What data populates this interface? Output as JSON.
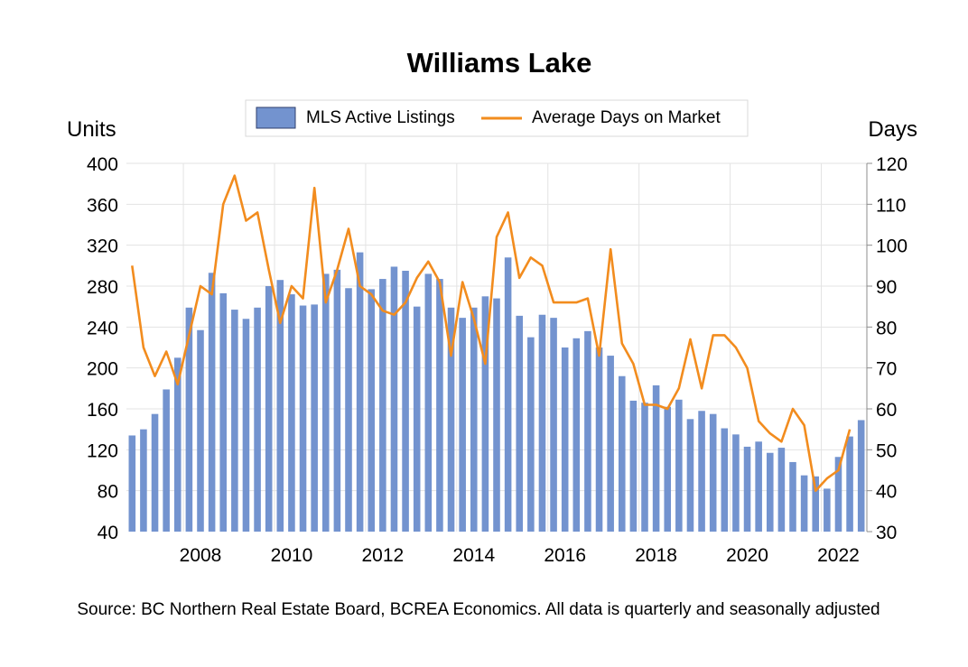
{
  "chart_data": {
    "type": "bar+line",
    "title": "Williams Lake",
    "source": "Source: BC Northern Real Estate Board, BCREA Economics. All data is quarterly and seasonally adjusted",
    "y_left_label": "Units",
    "y_right_label": "Days",
    "y_left_lim": [
      40,
      400
    ],
    "y_left_ticks": [
      "400",
      "360",
      "320",
      "280",
      "240",
      "200",
      "160",
      "120",
      "80",
      "40"
    ],
    "y_right_lim": [
      30,
      120
    ],
    "y_right_ticks": [
      "120",
      "110",
      "100",
      "90",
      "80",
      "70",
      "60",
      "50",
      "40",
      "30"
    ],
    "x_start": "2006 Q4",
    "x_tick_labels": [
      "2008",
      "2010",
      "2012",
      "2014",
      "2016",
      "2018",
      "2020",
      "2022"
    ],
    "x_tick_quarters": [
      "2008 Q1",
      "2010 Q1",
      "2012 Q1",
      "2014 Q1",
      "2016 Q1",
      "2018 Q1",
      "2020 Q1",
      "2022 Q1"
    ],
    "grid": true,
    "legend_position": "top-center",
    "series": [
      {
        "name": "MLS Active Listings",
        "type": "bar",
        "axis": "left",
        "color": "#7393cf",
        "values": [
          134,
          140,
          155,
          179,
          210,
          259,
          237,
          293,
          273,
          257,
          248,
          259,
          280,
          286,
          272,
          261,
          262,
          292,
          296,
          278,
          313,
          277,
          287,
          299,
          295,
          260,
          292,
          287,
          259,
          249,
          259,
          270,
          268,
          308,
          251,
          230,
          252,
          249,
          220,
          229,
          236,
          220,
          212,
          192,
          168,
          166,
          183,
          162,
          169,
          150,
          158,
          155,
          141,
          135,
          123,
          128,
          117,
          122,
          108,
          95,
          94,
          82,
          113,
          133,
          149
        ]
      },
      {
        "name": "Average Days on Market",
        "type": "line",
        "axis": "right",
        "color": "#f28c1e",
        "values": [
          95,
          75,
          68,
          74,
          66,
          78,
          90,
          88,
          110,
          117,
          106,
          108,
          94,
          81,
          90,
          87,
          114,
          86,
          94,
          104,
          90,
          88,
          84,
          83,
          86,
          92,
          96,
          91,
          73,
          91,
          82,
          71,
          102,
          108,
          92,
          97,
          95,
          86,
          86,
          86,
          87,
          73,
          99,
          76,
          71,
          61,
          61,
          60,
          65,
          77,
          65,
          78,
          78,
          75,
          70,
          57,
          54,
          52,
          60,
          56,
          40,
          43,
          45,
          55
        ]
      }
    ]
  }
}
